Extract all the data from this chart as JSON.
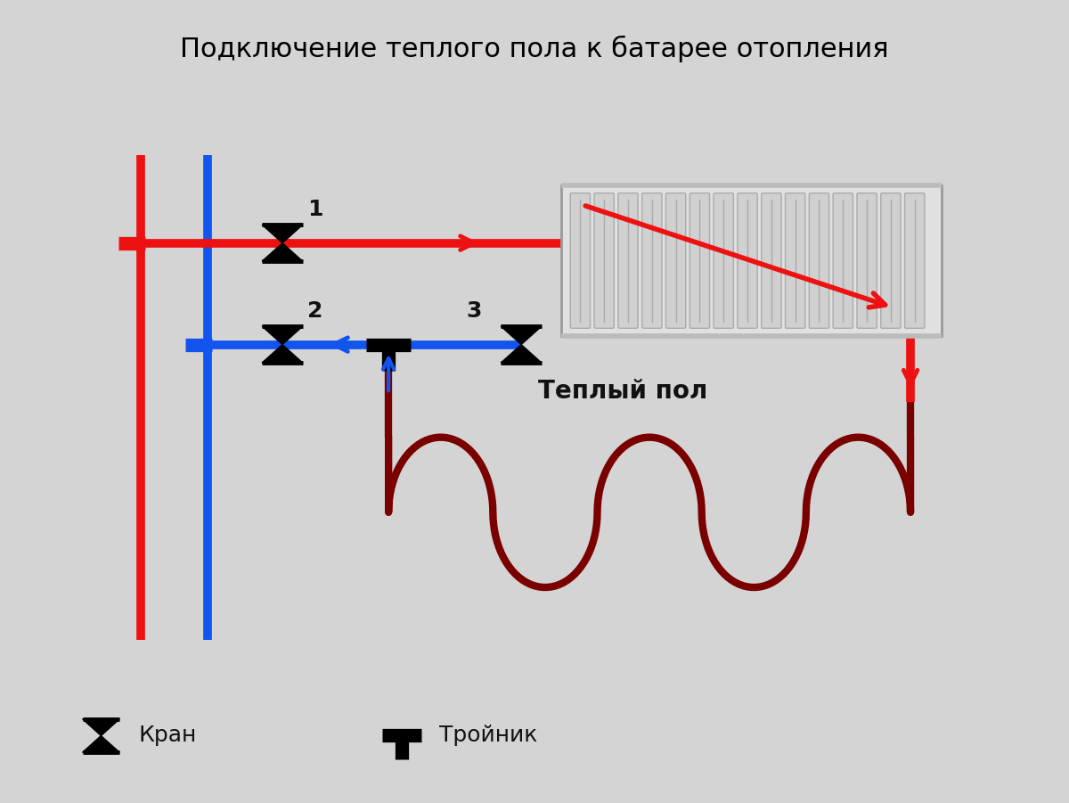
{
  "title": "Подключение теплого пола к батарее отопления",
  "bg_color": "#d4d4d4",
  "red_color": "#ee1111",
  "blue_color": "#1155ee",
  "dark_red_color": "#7a0000",
  "black_color": "#111111",
  "radiator_bg": "#e0e0e0",
  "radiator_border": "#999999",
  "legend_valve_label": "Кран",
  "legend_tee_label": "Тройник",
  "warm_floor_label": "Теплый пол",
  "label1": "1",
  "label2": "2",
  "label3": "3",
  "lw_main": 7,
  "lw_floor": 5
}
